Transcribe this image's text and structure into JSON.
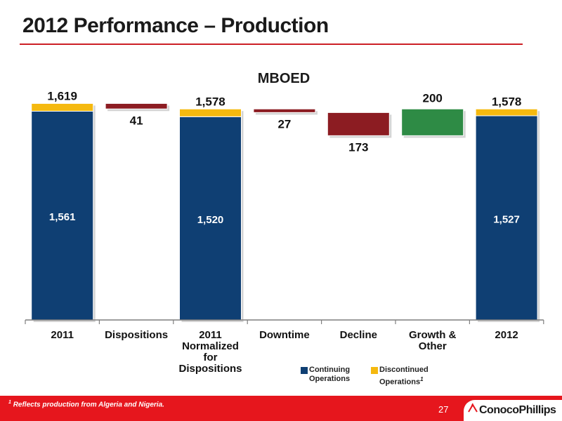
{
  "slide": {
    "title": "2012 Performance – Production",
    "page_number": "27",
    "footnote_marker": "1",
    "footnote_text": "Reflects production from Algeria and Nigeria.",
    "logo_text": "ConocoPhillips"
  },
  "colors": {
    "continuing": "#0f3f73",
    "discontinued": "#f5b90f",
    "decrease": "#8c1c22",
    "increase": "#2e8b45",
    "accent_red": "#e6161d"
  },
  "chart_data": {
    "type": "bar",
    "subtype": "waterfall",
    "title": "MBOED",
    "ylim": [
      0,
      1700
    ],
    "categories": [
      [
        "2011"
      ],
      [
        "Dispositions"
      ],
      [
        "2011",
        "Normalized",
        "for",
        "Dispositions"
      ],
      [
        "Downtime"
      ],
      [
        "Decline"
      ],
      [
        "Growth &",
        "Other"
      ],
      [
        "2012"
      ]
    ],
    "bars": [
      {
        "kind": "total",
        "continuing": 1561,
        "discontinued": 58,
        "total": 1619,
        "label_continuing": "1,561",
        "label_total": "1,619"
      },
      {
        "kind": "decrease",
        "start": 1619,
        "value": 41,
        "label": "41"
      },
      {
        "kind": "total",
        "continuing": 1520,
        "discontinued": 58,
        "total": 1578,
        "label_continuing": "1,520",
        "label_total": "1,578"
      },
      {
        "kind": "decrease",
        "start": 1578,
        "value": 27,
        "label": "27"
      },
      {
        "kind": "decrease",
        "start": 1551,
        "value": 173,
        "label": "173"
      },
      {
        "kind": "increase",
        "start": 1378,
        "value": 200,
        "label": "200"
      },
      {
        "kind": "total",
        "continuing": 1527,
        "discontinued": 51,
        "total": 1578,
        "label_continuing": "1,527",
        "label_total": "1,578"
      }
    ],
    "legend": [
      {
        "name": "Continuing Operations",
        "lines": [
          "Continuing",
          "Operations"
        ],
        "color_key": "continuing",
        "marker": ""
      },
      {
        "name": "Discontinued Operations",
        "lines": [
          "Discontinued",
          "Operations"
        ],
        "color_key": "discontinued",
        "marker": "1"
      }
    ]
  }
}
